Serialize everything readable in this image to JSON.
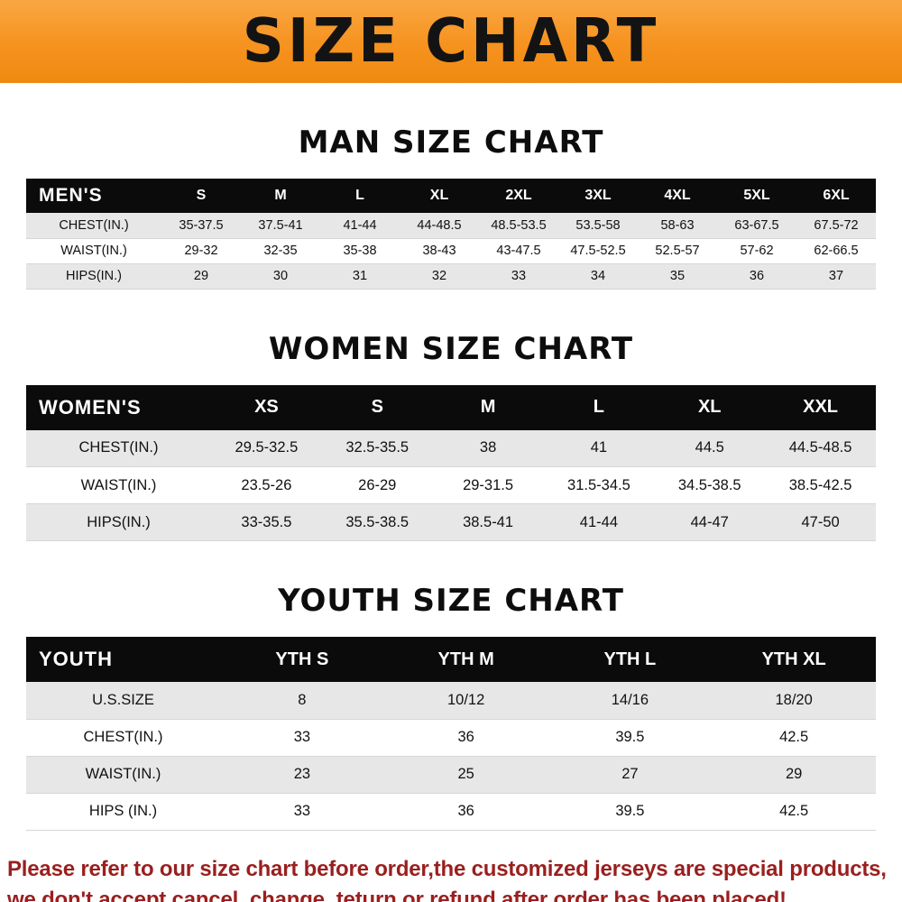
{
  "banner": {
    "title": "SIZE CHART",
    "bg_color": "#f6921e",
    "text_color": "#131313"
  },
  "colors": {
    "table_header_bg": "#0b0b0b",
    "table_header_text": "#ffffff",
    "row_stripe": "#e7e7e7",
    "footer_text": "#9a1f1f"
  },
  "chart_data": [
    {
      "type": "table",
      "title": "MAN SIZE CHART",
      "label": "MEN'S",
      "columns": [
        "S",
        "M",
        "L",
        "XL",
        "2XL",
        "3XL",
        "4XL",
        "5XL",
        "6XL"
      ],
      "rows": [
        {
          "label": "CHEST(IN.)",
          "values": [
            "35-37.5",
            "37.5-41",
            "41-44",
            "44-48.5",
            "48.5-53.5",
            "53.5-58",
            "58-63",
            "63-67.5",
            "67.5-72"
          ]
        },
        {
          "label": "WAIST(IN.)",
          "values": [
            "29-32",
            "32-35",
            "35-38",
            "38-43",
            "43-47.5",
            "47.5-52.5",
            "52.5-57",
            "57-62",
            "62-66.5"
          ]
        },
        {
          "label": "HIPS(IN.)",
          "values": [
            "29",
            "30",
            "31",
            "32",
            "33",
            "34",
            "35",
            "36",
            "37"
          ]
        }
      ]
    },
    {
      "type": "table",
      "title": "WOMEN SIZE CHART",
      "label": "WOMEN'S",
      "columns": [
        "XS",
        "S",
        "M",
        "L",
        "XL",
        "XXL"
      ],
      "rows": [
        {
          "label": "CHEST(IN.)",
          "values": [
            "29.5-32.5",
            "32.5-35.5",
            "38",
            "41",
            "44.5",
            "44.5-48.5"
          ]
        },
        {
          "label": "WAIST(IN.)",
          "values": [
            "23.5-26",
            "26-29",
            "29-31.5",
            "31.5-34.5",
            "34.5-38.5",
            "38.5-42.5"
          ]
        },
        {
          "label": "HIPS(IN.)",
          "values": [
            "33-35.5",
            "35.5-38.5",
            "38.5-41",
            "41-44",
            "44-47",
            "47-50"
          ]
        }
      ]
    },
    {
      "type": "table",
      "title": "YOUTH SIZE CHART",
      "label": "YOUTH",
      "columns": [
        "YTH S",
        "YTH M",
        "YTH L",
        "YTH XL"
      ],
      "rows": [
        {
          "label": "U.S.SIZE",
          "values": [
            "8",
            "10/12",
            "14/16",
            "18/20"
          ]
        },
        {
          "label": "CHEST(IN.)",
          "values": [
            "33",
            "36",
            "39.5",
            "42.5"
          ]
        },
        {
          "label": "WAIST(IN.)",
          "values": [
            "23",
            "25",
            "27",
            "29"
          ]
        },
        {
          "label": "HIPS (IN.)",
          "values": [
            "33",
            "36",
            "39.5",
            "42.5"
          ]
        }
      ]
    }
  ],
  "footer": {
    "line1": "Please refer to our size chart before order,the customized jerseys are special products,",
    "line2": "we don't accept cancel, change, teturn or refund after order has been placed!"
  }
}
